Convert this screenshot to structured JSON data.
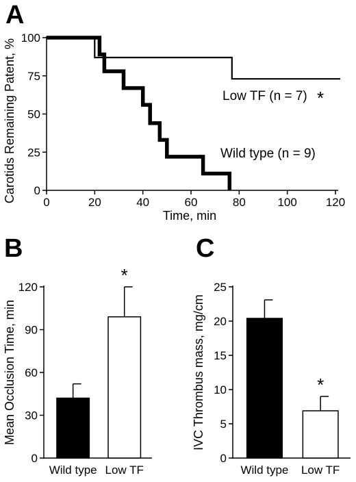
{
  "colors": {
    "ink": "#000000",
    "wild_type": "#000000",
    "low_tf": "#ffffff"
  },
  "chart_data": [
    {
      "panel": "A",
      "type": "line",
      "step": true,
      "xlabel": "Time, min",
      "ylabel": "Carotids Remaining Patent, %",
      "xlim": [
        0,
        120
      ],
      "ylim": [
        0,
        100
      ],
      "xticks": [
        0,
        20,
        40,
        60,
        80,
        100,
        120
      ],
      "yticks": [
        0,
        25,
        50,
        75,
        100
      ],
      "series": [
        {
          "name": "Wild type (n = 9)",
          "style": "thick",
          "points": [
            [
              0,
              100
            ],
            [
              22,
              100
            ],
            [
              22,
              89
            ],
            [
              24,
              89
            ],
            [
              24,
              78
            ],
            [
              32,
              78
            ],
            [
              32,
              67
            ],
            [
              40,
              67
            ],
            [
              40,
              56
            ],
            [
              43,
              56
            ],
            [
              43,
              44
            ],
            [
              47,
              44
            ],
            [
              47,
              33
            ],
            [
              50,
              33
            ],
            [
              50,
              22
            ],
            [
              65,
              22
            ],
            [
              65,
              11
            ],
            [
              76,
              11
            ],
            [
              76,
              0
            ]
          ]
        },
        {
          "name": "Low TF (n = 7)",
          "marker": "*",
          "style": "thin",
          "points": [
            [
              0,
              100
            ],
            [
              20,
              100
            ],
            [
              20,
              87
            ],
            [
              77,
              87
            ],
            [
              77,
              73
            ],
            [
              122,
              73
            ]
          ]
        }
      ]
    },
    {
      "panel": "B",
      "type": "bar",
      "ylabel": "Mean Occlusion Time, min",
      "categories": [
        "Wild type",
        "Low TF"
      ],
      "values": [
        42,
        99
      ],
      "errors": [
        10,
        21
      ],
      "markers": [
        "",
        "*"
      ],
      "ylim": [
        0,
        120
      ],
      "yticks": [
        0,
        30,
        60,
        90,
        120
      ]
    },
    {
      "panel": "C",
      "type": "bar",
      "ylabel": "IVC Thrombus mass, mg/cm",
      "categories": [
        "Wild type",
        "Low TF"
      ],
      "values": [
        20.4,
        6.9
      ],
      "errors": [
        2.7,
        2.1
      ],
      "markers": [
        "",
        "*"
      ],
      "ylim": [
        0,
        25
      ],
      "yticks": [
        0,
        5,
        10,
        15,
        20,
        25
      ]
    }
  ]
}
